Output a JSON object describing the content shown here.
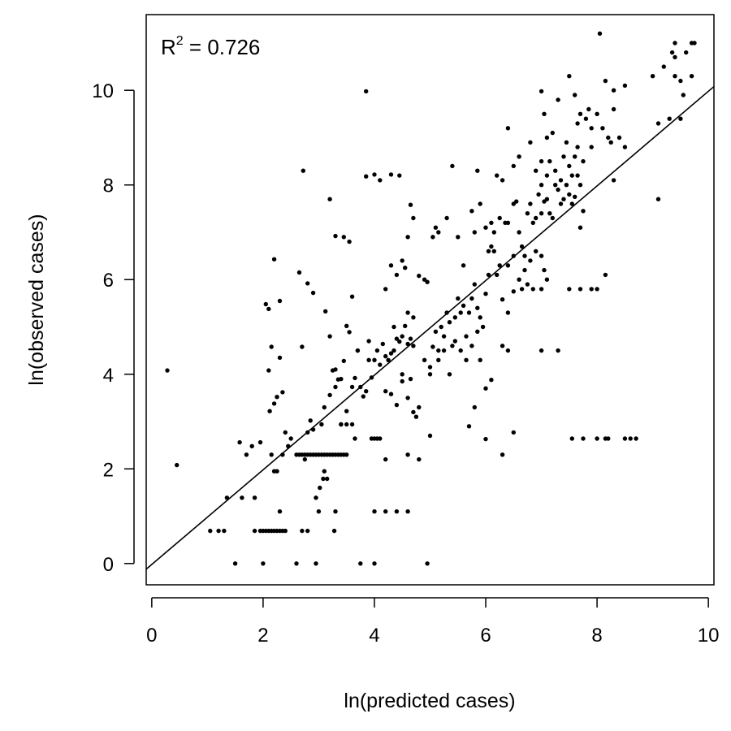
{
  "chart_data": {
    "type": "scatter",
    "title": "",
    "xlabel": "ln(predicted cases)",
    "ylabel": "ln(observed cases)",
    "xlim": [
      -0.1,
      10.1
    ],
    "ylim": [
      -0.45,
      11.6
    ],
    "x_ticks": [
      0,
      2,
      4,
      6,
      8,
      10
    ],
    "y_ticks": [
      0,
      2,
      4,
      6,
      8,
      10
    ],
    "grid": false,
    "legend": "none",
    "annotation": {
      "prefix": "R",
      "superscript": "2",
      "suffix": " = 0.726"
    },
    "fit_line": {
      "intercept": -0.02,
      "slope": 1.0
    },
    "colors": {
      "points": "#000000",
      "line": "#000000",
      "axes": "#000000"
    },
    "points": [
      [
        0.28,
        4.08
      ],
      [
        0.45,
        2.08
      ],
      [
        1.05,
        0.69
      ],
      [
        1.2,
        0.69
      ],
      [
        1.3,
        0.69
      ],
      [
        1.35,
        1.39
      ],
      [
        1.5,
        0
      ],
      [
        1.58,
        2.56
      ],
      [
        1.62,
        1.39
      ],
      [
        1.7,
        2.3
      ],
      [
        1.8,
        2.48
      ],
      [
        1.85,
        1.39
      ],
      [
        1.95,
        2.56
      ],
      [
        2.0,
        0
      ],
      [
        1.85,
        0.69
      ],
      [
        1.95,
        0.69
      ],
      [
        2.0,
        0.69
      ],
      [
        2.05,
        0.69
      ],
      [
        2.1,
        0.69
      ],
      [
        2.15,
        0.69
      ],
      [
        2.2,
        0.69
      ],
      [
        2.25,
        0.69
      ],
      [
        2.3,
        0.69
      ],
      [
        2.35,
        0.69
      ],
      [
        2.4,
        0.69
      ],
      [
        2.05,
        5.48
      ],
      [
        2.1,
        5.38
      ],
      [
        2.2,
        6.43
      ],
      [
        2.3,
        5.55
      ],
      [
        2.12,
        3.22
      ],
      [
        2.2,
        3.38
      ],
      [
        2.25,
        3.52
      ],
      [
        2.3,
        4.35
      ],
      [
        2.35,
        3.62
      ],
      [
        2.4,
        2.77
      ],
      [
        2.15,
        2.3
      ],
      [
        2.25,
        1.95
      ],
      [
        2.3,
        1.1
      ],
      [
        2.35,
        2.3
      ],
      [
        2.2,
        1.95
      ],
      [
        2.1,
        4.08
      ],
      [
        2.15,
        4.58
      ],
      [
        2.45,
        2.48
      ],
      [
        2.5,
        2.64
      ],
      [
        2.6,
        2.3
      ],
      [
        2.65,
        2.3
      ],
      [
        2.7,
        2.3
      ],
      [
        2.75,
        2.3
      ],
      [
        2.8,
        2.3
      ],
      [
        2.85,
        2.3
      ],
      [
        2.9,
        2.3
      ],
      [
        2.95,
        2.3
      ],
      [
        3.0,
        2.3
      ],
      [
        3.05,
        2.3
      ],
      [
        3.1,
        2.3
      ],
      [
        3.15,
        2.3
      ],
      [
        3.2,
        2.3
      ],
      [
        3.25,
        2.3
      ],
      [
        3.3,
        2.3
      ],
      [
        3.35,
        2.3
      ],
      [
        3.4,
        2.3
      ],
      [
        3.45,
        2.3
      ],
      [
        3.5,
        2.3
      ],
      [
        2.6,
        0
      ],
      [
        2.7,
        0.69
      ],
      [
        2.8,
        0.69
      ],
      [
        2.95,
        0
      ],
      [
        2.72,
        8.3
      ],
      [
        2.65,
        6.15
      ],
      [
        2.8,
        5.92
      ],
      [
        2.9,
        5.72
      ],
      [
        2.7,
        4.58
      ],
      [
        2.75,
        2.2
      ],
      [
        2.8,
        2.77
      ],
      [
        2.85,
        3.02
      ],
      [
        2.9,
        2.83
      ],
      [
        3.0,
        1.1
      ],
      [
        2.95,
        1.39
      ],
      [
        3.02,
        1.6
      ],
      [
        3.08,
        1.79
      ],
      [
        3.1,
        1.95
      ],
      [
        3.15,
        1.79
      ],
      [
        3.2,
        7.7
      ],
      [
        3.12,
        5.33
      ],
      [
        3.2,
        4.8
      ],
      [
        3.25,
        4.08
      ],
      [
        3.28,
        0.69
      ],
      [
        3.3,
        1.1
      ],
      [
        3.3,
        6.92
      ],
      [
        3.05,
        2.94
      ],
      [
        3.1,
        3.3
      ],
      [
        3.2,
        3.56
      ],
      [
        3.3,
        3.73
      ],
      [
        3.35,
        3.89
      ],
      [
        3.4,
        2.94
      ],
      [
        3.45,
        4.28
      ],
      [
        3.5,
        3.22
      ],
      [
        3.5,
        5.02
      ],
      [
        3.55,
        4.89
      ],
      [
        3.45,
        6.9
      ],
      [
        3.55,
        6.8
      ],
      [
        3.4,
        2.94
      ],
      [
        3.5,
        2.94
      ],
      [
        3.6,
        2.94
      ],
      [
        3.65,
        2.64
      ],
      [
        3.6,
        3.73
      ],
      [
        3.65,
        3.92
      ],
      [
        3.7,
        4.5
      ],
      [
        3.75,
        3.73
      ],
      [
        3.8,
        3.53
      ],
      [
        3.85,
        3.64
      ],
      [
        3.9,
        4.3
      ],
      [
        3.95,
        2.64
      ],
      [
        4.0,
        2.64
      ],
      [
        4.05,
        2.64
      ],
      [
        4.1,
        2.64
      ],
      [
        3.85,
        9.98
      ],
      [
        3.75,
        0
      ],
      [
        4.0,
        0
      ],
      [
        3.85,
        8.18
      ],
      [
        4.0,
        8.22
      ],
      [
        4.1,
        8.1
      ],
      [
        4.3,
        8.22
      ],
      [
        4.45,
        8.2
      ],
      [
        4.0,
        1.1
      ],
      [
        4.2,
        1.1
      ],
      [
        4.4,
        1.1
      ],
      [
        4.6,
        1.1
      ],
      [
        3.3,
        4.1
      ],
      [
        3.4,
        3.9
      ],
      [
        3.6,
        5.64
      ],
      [
        3.7,
        4.5
      ],
      [
        3.9,
        4.7
      ],
      [
        3.95,
        3.93
      ],
      [
        4.0,
        4.3
      ],
      [
        4.05,
        4.5
      ],
      [
        4.1,
        4.2
      ],
      [
        4.15,
        4.64
      ],
      [
        4.2,
        4.38
      ],
      [
        4.25,
        4.3
      ],
      [
        4.3,
        4.44
      ],
      [
        4.35,
        4.5
      ],
      [
        4.4,
        4.75
      ],
      [
        4.45,
        4.69
      ],
      [
        4.5,
        4.8
      ],
      [
        4.55,
        5.02
      ],
      [
        4.6,
        4.64
      ],
      [
        4.65,
        4.75
      ],
      [
        4.7,
        4.6
      ],
      [
        4.2,
        5.8
      ],
      [
        4.3,
        6.3
      ],
      [
        4.4,
        6.1
      ],
      [
        4.5,
        6.4
      ],
      [
        4.35,
        5.0
      ],
      [
        4.6,
        5.3
      ],
      [
        4.7,
        5.2
      ],
      [
        4.8,
        6.08
      ],
      [
        4.9,
        6.0
      ],
      [
        4.95,
        5.95
      ],
      [
        4.55,
        6.25
      ],
      [
        4.6,
        6.9
      ],
      [
        4.7,
        7.3
      ],
      [
        4.65,
        7.58
      ],
      [
        4.2,
        3.64
      ],
      [
        4.3,
        3.58
      ],
      [
        4.4,
        3.35
      ],
      [
        4.5,
        3.85
      ],
      [
        4.6,
        3.5
      ],
      [
        4.7,
        3.2
      ],
      [
        4.75,
        3.1
      ],
      [
        4.8,
        3.3
      ],
      [
        4.2,
        2.2
      ],
      [
        4.6,
        2.3
      ],
      [
        4.8,
        2.2
      ],
      [
        4.5,
        4.0
      ],
      [
        4.65,
        3.9
      ],
      [
        4.9,
        4.3
      ],
      [
        5.0,
        4.0
      ],
      [
        5.05,
        4.58
      ],
      [
        5.1,
        4.9
      ],
      [
        5.15,
        4.5
      ],
      [
        5.2,
        5.0
      ],
      [
        5.25,
        4.8
      ],
      [
        5.3,
        5.3
      ],
      [
        5.35,
        5.1
      ],
      [
        5.4,
        4.6
      ],
      [
        5.45,
        5.2
      ],
      [
        5.5,
        5.6
      ],
      [
        5.55,
        5.3
      ],
      [
        5.6,
        5.45
      ],
      [
        5.65,
        4.8
      ],
      [
        5.7,
        5.3
      ],
      [
        5.75,
        5.6
      ],
      [
        5.8,
        5.9
      ],
      [
        5.85,
        5.4
      ],
      [
        5.9,
        5.2
      ],
      [
        5.95,
        5.0
      ],
      [
        6.0,
        5.7
      ],
      [
        6.05,
        6.1
      ],
      [
        6.1,
        6.7
      ],
      [
        6.15,
        6.6
      ],
      [
        6.2,
        6.1
      ],
      [
        6.25,
        6.3
      ],
      [
        5.0,
        4.15
      ],
      [
        5.15,
        4.3
      ],
      [
        5.25,
        4.5
      ],
      [
        5.35,
        4.0
      ],
      [
        5.45,
        4.7
      ],
      [
        5.55,
        4.5
      ],
      [
        5.65,
        4.3
      ],
      [
        5.75,
        4.6
      ],
      [
        5.85,
        4.9
      ],
      [
        5.9,
        4.3
      ],
      [
        6.0,
        3.7
      ],
      [
        6.1,
        3.88
      ],
      [
        5.8,
        3.3
      ],
      [
        5.7,
        2.9
      ],
      [
        5.0,
        2.7
      ],
      [
        4.95,
        0
      ],
      [
        5.05,
        6.9
      ],
      [
        5.15,
        7.0
      ],
      [
        5.1,
        7.1
      ],
      [
        5.4,
        8.4
      ],
      [
        5.3,
        7.3
      ],
      [
        5.5,
        6.9
      ],
      [
        5.6,
        6.3
      ],
      [
        5.75,
        7.45
      ],
      [
        5.8,
        7.0
      ],
      [
        5.9,
        7.6
      ],
      [
        6.0,
        7.1
      ],
      [
        5.85,
        8.3
      ],
      [
        6.2,
        8.2
      ],
      [
        6.3,
        8.1
      ],
      [
        6.0,
        2.63
      ],
      [
        6.3,
        2.3
      ],
      [
        6.5,
        2.77
      ],
      [
        6.05,
        6.6
      ],
      [
        6.1,
        7.2
      ],
      [
        6.15,
        7.0
      ],
      [
        6.25,
        7.3
      ],
      [
        6.35,
        7.2
      ],
      [
        6.4,
        7.2
      ],
      [
        6.5,
        7.6
      ],
      [
        6.55,
        7.65
      ],
      [
        6.6,
        7.0
      ],
      [
        6.65,
        6.7
      ],
      [
        6.7,
        6.5
      ],
      [
        6.75,
        7.4
      ],
      [
        6.8,
        7.6
      ],
      [
        6.85,
        7.2
      ],
      [
        6.9,
        7.3
      ],
      [
        6.95,
        7.8
      ],
      [
        7.0,
        7.4
      ],
      [
        7.05,
        7.65
      ],
      [
        7.1,
        7.7
      ],
      [
        7.15,
        7.4
      ],
      [
        7.2,
        7.3
      ],
      [
        7.25,
        8.0
      ],
      [
        7.3,
        7.9
      ],
      [
        7.35,
        7.6
      ],
      [
        7.4,
        7.7
      ],
      [
        7.45,
        8.0
      ],
      [
        7.5,
        7.8
      ],
      [
        7.55,
        7.6
      ],
      [
        7.6,
        7.75
      ],
      [
        7.65,
        8.2
      ],
      [
        7.7,
        7.1
      ],
      [
        7.75,
        7.45
      ],
      [
        6.3,
        5.58
      ],
      [
        6.4,
        5.3
      ],
      [
        6.5,
        5.75
      ],
      [
        6.6,
        6.0
      ],
      [
        6.7,
        6.2
      ],
      [
        6.8,
        6.4
      ],
      [
        6.9,
        6.6
      ],
      [
        7.0,
        6.5
      ],
      [
        7.05,
        6.2
      ],
      [
        6.65,
        5.8
      ],
      [
        6.75,
        5.9
      ],
      [
        6.85,
        5.8
      ],
      [
        7.0,
        5.8
      ],
      [
        7.1,
        6.0
      ],
      [
        6.3,
        4.6
      ],
      [
        6.4,
        4.5
      ],
      [
        6.4,
        6.3
      ],
      [
        6.5,
        6.5
      ],
      [
        6.5,
        8.4
      ],
      [
        6.4,
        9.2
      ],
      [
        6.6,
        8.6
      ],
      [
        6.8,
        8.9
      ],
      [
        6.9,
        8.3
      ],
      [
        7.0,
        8.5
      ],
      [
        7.05,
        9.5
      ],
      [
        7.1,
        9.0
      ],
      [
        7.2,
        9.1
      ],
      [
        7.0,
        9.98
      ],
      [
        7.3,
        9.8
      ],
      [
        7.3,
        4.5
      ],
      [
        7.0,
        4.5
      ],
      [
        7.0,
        8.0
      ],
      [
        7.1,
        8.2
      ],
      [
        7.15,
        8.5
      ],
      [
        7.25,
        8.3
      ],
      [
        7.35,
        8.1
      ],
      [
        7.4,
        8.6
      ],
      [
        7.45,
        8.9
      ],
      [
        7.5,
        8.4
      ],
      [
        7.55,
        8.2
      ],
      [
        7.6,
        8.6
      ],
      [
        7.65,
        8.8
      ],
      [
        7.7,
        8.0
      ],
      [
        7.75,
        8.5
      ],
      [
        7.65,
        9.3
      ],
      [
        7.7,
        9.5
      ],
      [
        7.8,
        9.4
      ],
      [
        7.85,
        9.6
      ],
      [
        7.9,
        9.2
      ],
      [
        7.9,
        8.8
      ],
      [
        8.0,
        9.5
      ],
      [
        8.1,
        9.2
      ],
      [
        8.2,
        9.0
      ],
      [
        8.25,
        8.9
      ],
      [
        8.3,
        8.1
      ],
      [
        8.4,
        9.0
      ],
      [
        8.05,
        11.2
      ],
      [
        8.15,
        10.2
      ],
      [
        8.3,
        10.0
      ],
      [
        8.5,
        10.1
      ],
      [
        8.3,
        9.6
      ],
      [
        7.5,
        5.8
      ],
      [
        7.7,
        5.8
      ],
      [
        7.9,
        5.8
      ],
      [
        8.0,
        5.8
      ],
      [
        8.15,
        6.1
      ],
      [
        7.5,
        10.3
      ],
      [
        7.6,
        9.9
      ],
      [
        7.55,
        2.64
      ],
      [
        7.75,
        2.64
      ],
      [
        8.0,
        2.64
      ],
      [
        8.15,
        2.64
      ],
      [
        8.2,
        2.64
      ],
      [
        8.5,
        2.64
      ],
      [
        8.6,
        2.64
      ],
      [
        8.7,
        2.64
      ],
      [
        8.5,
        8.8
      ],
      [
        9.1,
        7.7
      ],
      [
        9.0,
        10.3
      ],
      [
        9.2,
        10.5
      ],
      [
        9.1,
        9.3
      ],
      [
        9.3,
        9.4
      ],
      [
        9.4,
        11.0
      ],
      [
        9.5,
        9.4
      ],
      [
        9.4,
        10.3
      ],
      [
        9.5,
        10.2
      ],
      [
        9.55,
        9.9
      ],
      [
        9.6,
        10.8
      ],
      [
        9.7,
        10.3
      ],
      [
        9.7,
        11.0
      ],
      [
        9.75,
        11.0
      ],
      [
        9.4,
        10.7
      ],
      [
        9.35,
        10.8
      ]
    ]
  }
}
